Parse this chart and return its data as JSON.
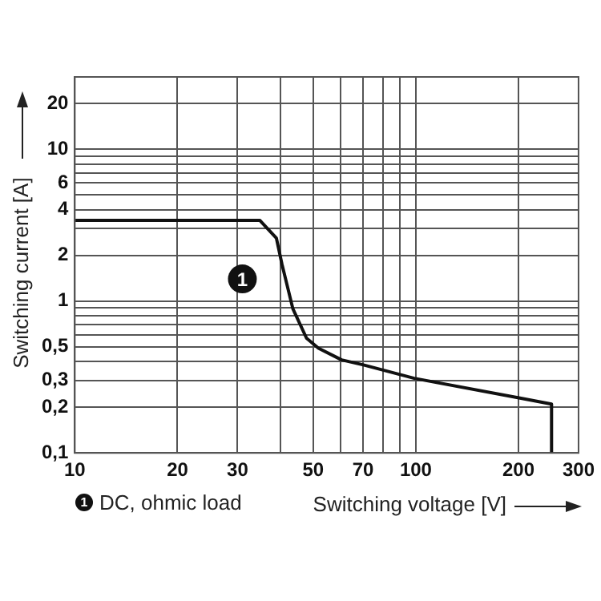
{
  "chart_data": {
    "type": "line",
    "xlabel": "Switching voltage [V]",
    "ylabel": "Switching current [A]",
    "log": "xy",
    "grid": true,
    "legend": false,
    "marker": "none",
    "line_style": "solid",
    "x": [
      10,
      34.9,
      39,
      40.5,
      43.6,
      47.8,
      51.8,
      60.6,
      70.2,
      99,
      202,
      250,
      250
    ],
    "series": [
      {
        "color": "#111111",
        "values": [
          3.4,
          3.4,
          2.6,
          1.75,
          0.89,
          0.57,
          0.49,
          0.41,
          0.38,
          0.31,
          0.23,
          0.21,
          0.1
        ]
      }
    ],
    "xlim": [
      10,
      300
    ],
    "xticks": [
      10,
      20,
      30,
      {
        "value": 40,
        "label": null
      },
      50,
      {
        "value": 60,
        "label": null
      },
      70,
      {
        "value": 80,
        "label": null
      },
      {
        "value": 90,
        "label": null
      },
      100,
      200,
      300
    ],
    "ylim": [
      0.1,
      30
    ],
    "yticks": [
      {
        "value": 0.1,
        "label": "0,1"
      },
      {
        "value": 0.2,
        "label": "0,2"
      },
      {
        "value": 0.3,
        "label": "0,3"
      },
      {
        "value": 0.4,
        "label": null
      },
      {
        "value": 0.5,
        "label": "0,5"
      },
      {
        "value": 0.6,
        "label": null
      },
      {
        "value": 0.7,
        "label": null
      },
      {
        "value": 0.8,
        "label": null
      },
      {
        "value": 0.9,
        "label": null
      },
      1,
      2,
      {
        "value": 3,
        "label": null
      },
      4,
      {
        "value": 5,
        "label": null
      },
      6,
      {
        "value": 7,
        "label": null
      },
      {
        "value": 8,
        "label": null
      },
      {
        "value": 9,
        "label": null
      },
      10,
      20
    ],
    "annotations": [
      {
        "text": "1",
        "x": 31,
        "y": 1.4
      },
      "DC, ohmic load"
    ]
  }
}
